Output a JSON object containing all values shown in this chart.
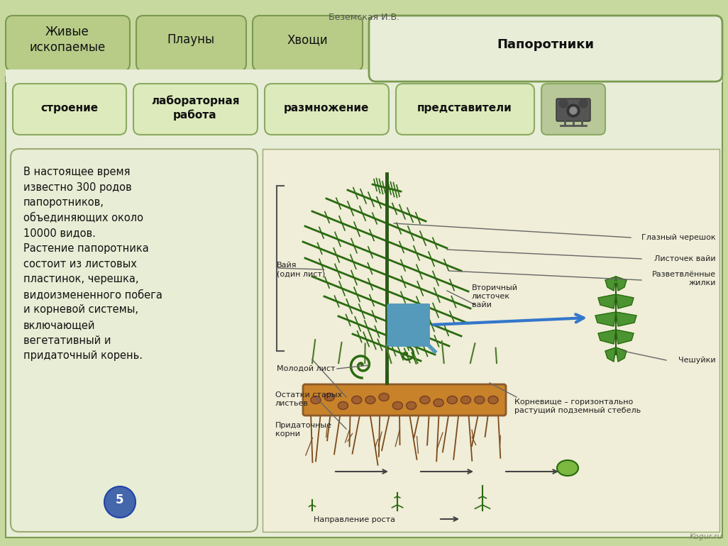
{
  "bg_color": "#c8d9a0",
  "header_author": "Беземская И.В.",
  "header_author_color": "#555555",
  "tab_bg": "#b8cc88",
  "tab_border": "#7a9a50",
  "tab_active_bg": "#e8edd8",
  "tab_active_border": "#7a9a50",
  "tabs": [
    "Живые\nископаемые",
    "Плауны",
    "Хвощи",
    "Папоротники"
  ],
  "tab_active": 3,
  "button_bg": "#ddeabb",
  "button_border": "#8aab60",
  "buttons": [
    "строение",
    "лабораторная\nработа",
    "размножение",
    "представители"
  ],
  "text_panel_bg": "#e8edd5",
  "text_panel_border": "#9aaa70",
  "main_text": "В настоящее время\nизвестно 300 родов\nпапоротников,\nобъединяющих около\n10000 видов.\nРастение папоротника\nсостоит из листовых\nпластинок, черешка,\nвидоизмененного побега\nи корневой системы,\nвключающей\nвегетативный и\nпридаточный корень.",
  "text_color": "#111111",
  "watermark": "Kogur.ru",
  "diag_bg": "#f0edd8",
  "diag_border": "#9aaa70",
  "stem_color": "#2a5a15",
  "leaf_color": "#2a6a10",
  "leaf_fill": "#3a8a20",
  "rhizome_color": "#8b5a2b",
  "rhizome_fill": "#c8832a",
  "root_color": "#7a4a1a",
  "magnifier_color": "#5599bb",
  "arrow_color": "#3377cc",
  "label_color": "#222222",
  "connector_color": "#666666"
}
